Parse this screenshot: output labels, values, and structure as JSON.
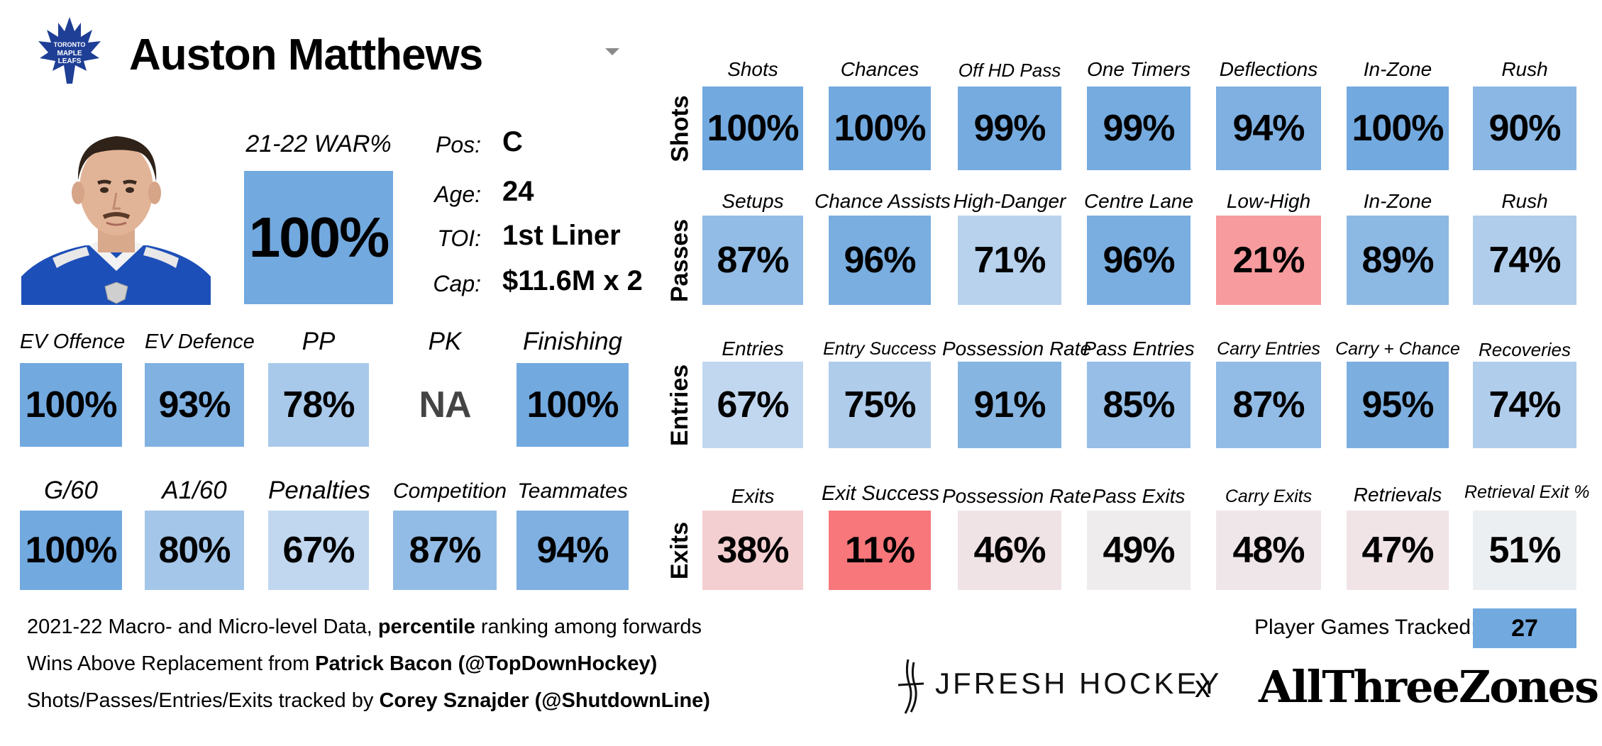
{
  "player": {
    "name": "Auston Matthews"
  },
  "war": {
    "label": "21-22 WAR%",
    "value": "100%",
    "color": "#72a9df"
  },
  "info": [
    {
      "label": "Pos:",
      "value": "C"
    },
    {
      "label": "Age:",
      "value": "24"
    },
    {
      "label": "TOI:",
      "value": "1st Liner"
    },
    {
      "label": "Cap:",
      "value": "$11.6M x 2"
    }
  ],
  "left_rows": [
    [
      {
        "label": "EV Offence",
        "value": "100%",
        "color": "#72a9df"
      },
      {
        "label": "EV Defence",
        "value": "93%",
        "color": "#80b1e1"
      },
      {
        "label": "PP",
        "value": "78%",
        "color": "#a9c9ea"
      },
      {
        "label": "PK",
        "value": "NA",
        "color": "#ffffff"
      },
      {
        "label": "Finishing",
        "value": "100%",
        "color": "#72a9df"
      }
    ],
    [
      {
        "label": "G/60",
        "value": "100%",
        "color": "#72a9df"
      },
      {
        "label": "A1/60",
        "value": "80%",
        "color": "#a4c6e9"
      },
      {
        "label": "Penalties",
        "value": "67%",
        "color": "#c1d7ef"
      },
      {
        "label": "Competition",
        "value": "87%",
        "color": "#92bce5"
      },
      {
        "label": "Teammates",
        "value": "94%",
        "color": "#7fb0e1"
      }
    ]
  ],
  "right_rows": [
    {
      "label": "Shots",
      "cells": [
        {
          "label": "Shots",
          "value": "100%",
          "color": "#72a9df"
        },
        {
          "label": "Chances",
          "value": "100%",
          "color": "#72a9df"
        },
        {
          "label": "Off HD Pass",
          "value": "99%",
          "color": "#75abdf"
        },
        {
          "label": "One Timers",
          "value": "99%",
          "color": "#75abdf"
        },
        {
          "label": "Deflections",
          "value": "94%",
          "color": "#7fb0e1"
        },
        {
          "label": "In-Zone",
          "value": "100%",
          "color": "#72a9df"
        },
        {
          "label": "Rush",
          "value": "90%",
          "color": "#8ab7e3"
        }
      ]
    },
    {
      "label": "Passes",
      "cells": [
        {
          "label": "Setups",
          "value": "87%",
          "color": "#92bce5"
        },
        {
          "label": "Chance Assists",
          "value": "96%",
          "color": "#7aaee0"
        },
        {
          "label": "High-Danger",
          "value": "71%",
          "color": "#b8d2ed"
        },
        {
          "label": "Centre Lane",
          "value": "96%",
          "color": "#7aaee0"
        },
        {
          "label": "Low-High",
          "value": "21%",
          "color": "#f89b9e"
        },
        {
          "label": "In-Zone",
          "value": "89%",
          "color": "#8cb8e4"
        },
        {
          "label": "Rush",
          "value": "74%",
          "color": "#b1cdec"
        }
      ]
    },
    {
      "label": "Entries",
      "cells": [
        {
          "label": "Entries",
          "value": "67%",
          "color": "#c1d7ef"
        },
        {
          "label": "Entry Success",
          "value": "75%",
          "color": "#afcceb"
        },
        {
          "label": "Possession Rate",
          "value": "91%",
          "color": "#87b5e2"
        },
        {
          "label": "Pass Entries",
          "value": "85%",
          "color": "#96bee6"
        },
        {
          "label": "Carry Entries",
          "value": "87%",
          "color": "#92bce5"
        },
        {
          "label": "Carry + Chance",
          "value": "95%",
          "color": "#7cafe0"
        },
        {
          "label": "Recoveries",
          "value": "74%",
          "color": "#b1cdec"
        }
      ]
    },
    {
      "label": "Exits",
      "cells": [
        {
          "label": "Exits",
          "value": "38%",
          "color": "#f4cfd2"
        },
        {
          "label": "Exit Success",
          "value": "11%",
          "color": "#f7777b"
        },
        {
          "label": "Possession Rate",
          "value": "46%",
          "color": "#f0e3e6"
        },
        {
          "label": "Pass Exits",
          "value": "49%",
          "color": "#efecee"
        },
        {
          "label": "Carry Exits",
          "value": "48%",
          "color": "#efe6e9"
        },
        {
          "label": "Retrievals",
          "value": "47%",
          "color": "#f0e4e7"
        },
        {
          "label": "Retrieval Exit %",
          "value": "51%",
          "color": "#eceff2"
        }
      ]
    }
  ],
  "footer": {
    "line1": {
      "prefix": "2021-22 Macro- and Micro-level Data, ",
      "bold": "percentile",
      "suffix": " ranking among forwards"
    },
    "line2": {
      "prefix": "Wins Above Replacement from ",
      "bold": "Patrick Bacon (@TopDownHockey)"
    },
    "line3": {
      "prefix": "Shots/Passes/Entries/Exits tracked by ",
      "bold": "Corey Sznajder (@ShutdownLine)"
    }
  },
  "games": {
    "label": "Player Games Tracked:",
    "value": "27"
  },
  "brands": {
    "jfresh": "JFRESH HOCKEY",
    "separator": "x",
    "atz": "AllThreeZones"
  }
}
